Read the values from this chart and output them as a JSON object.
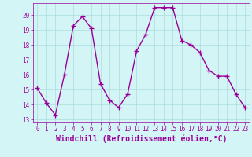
{
  "x": [
    0,
    1,
    2,
    3,
    4,
    5,
    6,
    7,
    8,
    9,
    10,
    11,
    12,
    13,
    14,
    15,
    16,
    17,
    18,
    19,
    20,
    21,
    22,
    23
  ],
  "y": [
    15.1,
    14.1,
    13.3,
    16.0,
    19.3,
    19.9,
    19.1,
    15.4,
    14.3,
    13.8,
    14.7,
    17.6,
    18.7,
    20.5,
    20.5,
    20.5,
    18.3,
    18.0,
    17.5,
    16.3,
    15.9,
    15.9,
    14.7,
    13.8
  ],
  "line_color": "#990099",
  "marker": "+",
  "marker_size": 4,
  "bg_color": "#d4f5f5",
  "grid_color": "#aadddd",
  "xlabel": "Windchill (Refroidissement éolien,°C)",
  "xlim": [
    -0.5,
    23.5
  ],
  "ylim": [
    12.8,
    20.8
  ],
  "yticks": [
    13,
    14,
    15,
    16,
    17,
    18,
    19,
    20
  ],
  "xticks": [
    0,
    1,
    2,
    3,
    4,
    5,
    6,
    7,
    8,
    9,
    10,
    11,
    12,
    13,
    14,
    15,
    16,
    17,
    18,
    19,
    20,
    21,
    22,
    23
  ],
  "tick_color": "#990099",
  "label_color": "#990099",
  "tick_fontsize": 5.5,
  "xlabel_fontsize": 7.0,
  "linewidth": 1.0,
  "marker_edge_width": 1.0
}
